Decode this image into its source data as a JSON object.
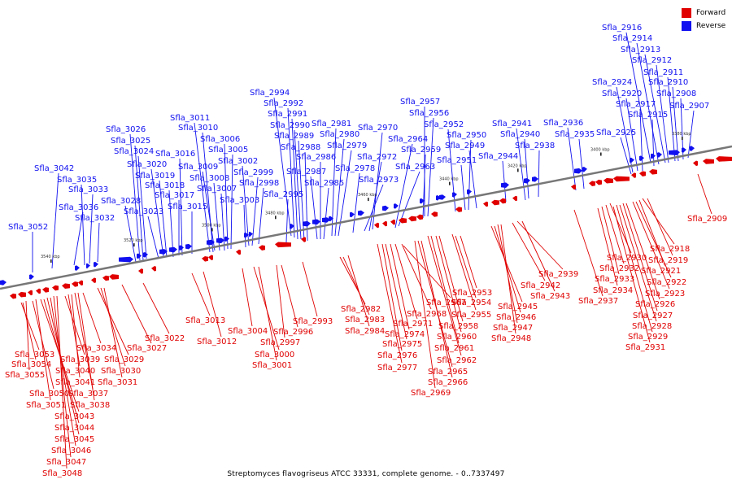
{
  "legend": [
    {
      "label": "Forward",
      "color": "#e00000"
    },
    {
      "label": "Reverse",
      "color": "#1010f0"
    }
  ],
  "caption": "Streptomyces flavogriseus ATCC 33331, complete genome. - 0..7337497",
  "scale_labels": [
    "3540 kbp",
    "3520 kbp",
    "3500 kbp",
    "3480 kbp",
    "3460 kbp",
    "3440 kbp",
    "3420 kbp",
    "3400 kbp",
    "3380 kbp"
  ],
  "colors": {
    "forward": "#e00000",
    "reverse": "#1010f0",
    "backbone": "#777777"
  },
  "reverse_labels": [
    "Sfla_3052",
    "Sfla_3042",
    "Sfla_3036",
    "Sfla_3035",
    "Sfla_3033",
    "Sfla_3032",
    "Sfla_3028",
    "Sfla_3026",
    "Sfla_3025",
    "Sfla_3024",
    "Sfla_3023",
    "Sfla_3020",
    "Sfla_3019",
    "Sfla_3018",
    "Sfla_3017",
    "Sfla_3016",
    "Sfla_3015",
    "Sfla_3011",
    "Sfla_3010",
    "Sfla_3009",
    "Sfla_3008",
    "Sfla_3007",
    "Sfla_3006",
    "Sfla_3005",
    "Sfla_3003",
    "Sfla_3002",
    "Sfla_2999",
    "Sfla_2998",
    "Sfla_2995",
    "Sfla_2994",
    "Sfla_2992",
    "Sfla_2991",
    "Sfla_2990",
    "Sfla_2989",
    "Sfla_2988",
    "Sfla_2987",
    "Sfla_2986",
    "Sfla_2985",
    "Sfla_2981",
    "Sfla_2980",
    "Sfla_2979",
    "Sfla_2978",
    "Sfla_2973",
    "Sfla_2972",
    "Sfla_2970",
    "Sfla_2964",
    "Sfla_2963",
    "Sfla_2959",
    "Sfla_2957",
    "Sfla_2956",
    "Sfla_2952",
    "Sfla_2951",
    "Sfla_2950",
    "Sfla_2949",
    "Sfla_2944",
    "Sfla_2941",
    "Sfla_2940",
    "Sfla_2938",
    "Sfla_2936",
    "Sfla_2935",
    "Sfla_2925",
    "Sfla_2924",
    "Sfla_2920",
    "Sfla_2917",
    "Sfla_2916",
    "Sfla_2915",
    "Sfla_2914",
    "Sfla_2913",
    "Sfla_2912",
    "Sfla_2911",
    "Sfla_2910",
    "Sfla_2908",
    "Sfla_2907"
  ],
  "forward_labels": [
    "Sfla_3053",
    "Sfla_3054",
    "Sfla_3055",
    "Sfla_3050",
    "Sfla_3051",
    "Sfla_3043",
    "Sfla_3044",
    "Sfla_3045",
    "Sfla_3046",
    "Sfla_3047",
    "Sfla_3048",
    "Sfla_3039",
    "Sfla_3040",
    "Sfla_3041",
    "Sfla_3037",
    "Sfla_3038",
    "Sfla_3034",
    "Sfla_3029",
    "Sfla_3030",
    "Sfla_3031",
    "Sfla_3027",
    "Sfla_3022",
    "Sfla_3013",
    "Sfla_3012",
    "Sfla_3004",
    "Sfla_3000",
    "Sfla_3001",
    "Sfla_2997",
    "Sfla_2996",
    "Sfla_2993",
    "Sfla_2982",
    "Sfla_2983",
    "Sfla_2984",
    "Sfla_2967",
    "Sfla_2968",
    "Sfla_2971",
    "Sfla_2974",
    "Sfla_2975",
    "Sfla_2976",
    "Sfla_2977",
    "Sfla_2965",
    "Sfla_2966",
    "Sfla_2969",
    "Sfla_2953",
    "Sfla_2954",
    "Sfla_2955",
    "Sfla_2958",
    "Sfla_2960",
    "Sfla_2961",
    "Sfla_2962",
    "Sfla_2945",
    "Sfla_2946",
    "Sfla_2947",
    "Sfla_2948",
    "Sfla_2939",
    "Sfla_2942",
    "Sfla_2943",
    "Sfla_2937",
    "Sfla_2930",
    "Sfla_2932",
    "Sfla_2933",
    "Sfla_2934",
    "Sfla_2918",
    "Sfla_2919",
    "Sfla_2921",
    "Sfla_2922",
    "Sfla_2923",
    "Sfla_2926",
    "Sfla_2927",
    "Sfla_2928",
    "Sfla_2929",
    "Sfla_2931",
    "Sfla_2909"
  ]
}
